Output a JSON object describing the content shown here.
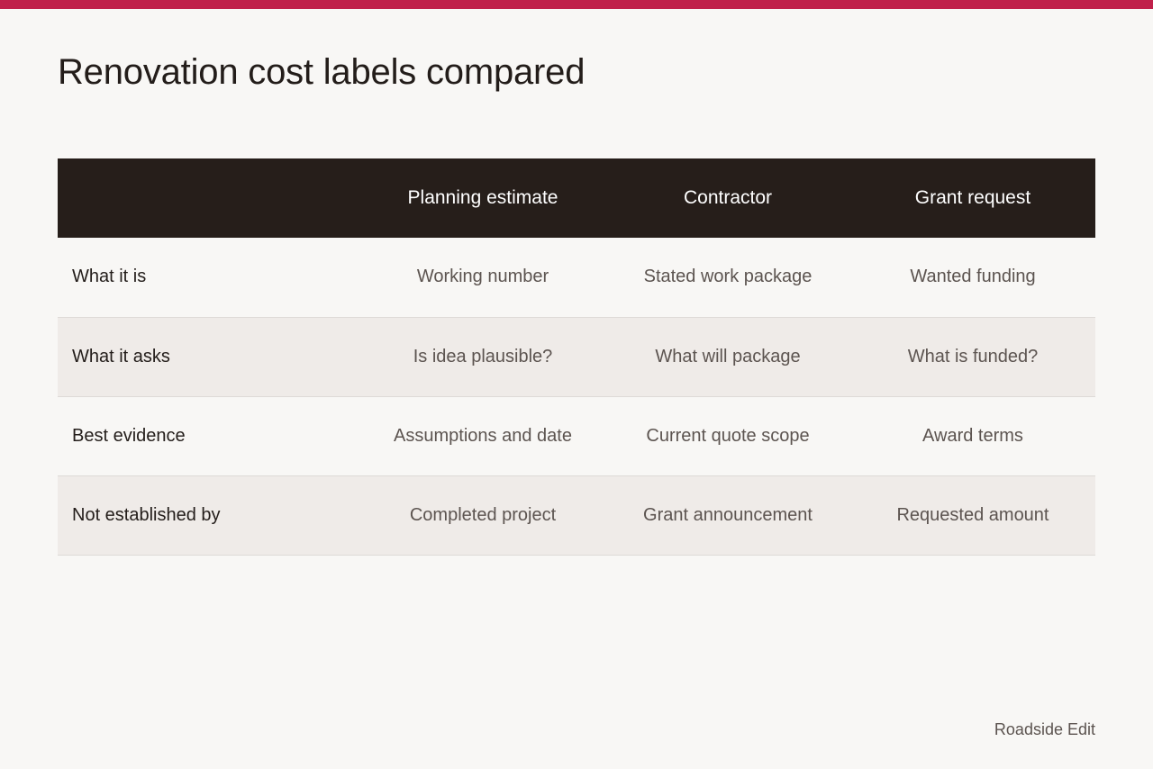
{
  "page": {
    "title": "Renovation cost labels compared",
    "footer": "Roadside Edit",
    "accent_color": "#c0204a"
  },
  "table": {
    "corner_label": "",
    "columns": [
      "Planning estimate",
      "Contractor",
      "Grant request"
    ],
    "rows": [
      {
        "label": "What it is",
        "cells": [
          "Working number",
          "Stated work package",
          "Wanted funding"
        ]
      },
      {
        "label": "What it asks",
        "cells": [
          "Is idea plausible?",
          "What will package",
          "What is funded?"
        ]
      },
      {
        "label": "Best evidence",
        "cells": [
          "Assumptions and date",
          "Current quote scope",
          "Award terms"
        ]
      },
      {
        "label": "Not established by",
        "cells": [
          "Completed project",
          "Grant announcement",
          "Requested amount"
        ]
      }
    ]
  }
}
